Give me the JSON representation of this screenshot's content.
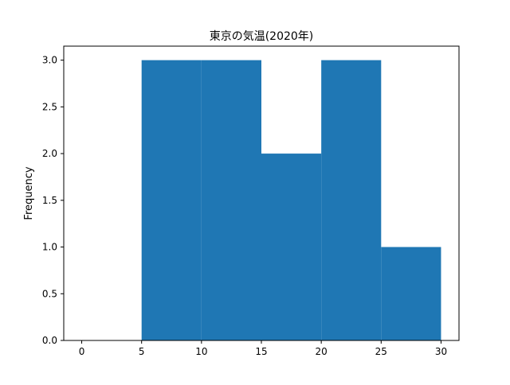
{
  "chart_data": {
    "type": "bar",
    "title": "東京の気温(2020年)",
    "xlabel": "",
    "ylabel": "Frequency",
    "bins": [
      [
        5,
        10
      ],
      [
        10,
        15
      ],
      [
        15,
        20
      ],
      [
        20,
        25
      ],
      [
        25,
        30
      ]
    ],
    "values": [
      3,
      3,
      2,
      3,
      1
    ],
    "xlim": [
      -1.5,
      31.5
    ],
    "ylim": [
      0,
      3.15
    ],
    "xticks": [
      0,
      5,
      10,
      15,
      20,
      25,
      30
    ],
    "yticks": [
      0.0,
      0.5,
      1.0,
      1.5,
      2.0,
      2.5,
      3.0
    ],
    "ytick_labels": [
      "0.0",
      "0.5",
      "1.0",
      "1.5",
      "2.0",
      "2.5",
      "3.0"
    ],
    "grid": false,
    "bar_color": "#1f77b4"
  }
}
